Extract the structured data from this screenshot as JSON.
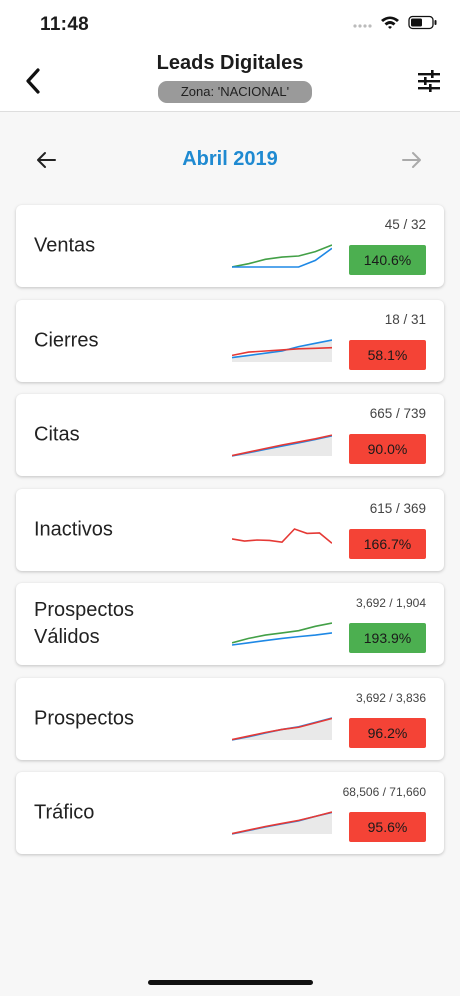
{
  "status_bar": {
    "time": "11:48"
  },
  "header": {
    "title": "Leads Digitales",
    "zone": "Zona: 'NACIONAL'"
  },
  "month_nav": {
    "label": "Abril 2019"
  },
  "colors": {
    "accent": "#1f8ad1",
    "good": "#4caf50",
    "bad": "#f44336",
    "series_actual": "#43a047",
    "series_target": "#1e88e5",
    "series_bad": "#e53935"
  },
  "metrics": [
    {
      "name": "Ventas",
      "ratio": "45 / 32",
      "percent": "140.6%",
      "status": "good",
      "spark": {
        "a": [
          0,
          0.15,
          0.35,
          0.45,
          0.5,
          0.7,
          1.0
        ],
        "b": [
          0,
          0,
          0,
          0,
          0,
          0.3,
          0.85
        ],
        "colorA": "#43a047",
        "colorB": "#1e88e5",
        "fill": false
      }
    },
    {
      "name": "Cierres",
      "ratio": "18 / 31",
      "percent": "58.1%",
      "status": "bad",
      "spark": {
        "a": [
          0.2,
          0.3,
          0.4,
          0.5,
          0.7,
          0.85,
          1.0
        ],
        "b": [
          0.3,
          0.45,
          0.5,
          0.55,
          0.6,
          0.62,
          0.65
        ],
        "colorA": "#1e88e5",
        "colorB": "#e53935",
        "fill": true
      }
    },
    {
      "name": "Citas",
      "ratio": "665 / 739",
      "percent": "90.0%",
      "status": "bad",
      "spark": {
        "a": [
          0,
          0.15,
          0.3,
          0.45,
          0.6,
          0.75,
          0.92
        ],
        "b": [
          0.02,
          0.18,
          0.34,
          0.5,
          0.64,
          0.78,
          0.95
        ],
        "colorA": "#1e88e5",
        "colorB": "#e53935",
        "fill": true
      }
    },
    {
      "name": "Inactivos",
      "ratio": "615 / 369",
      "percent": "166.7%",
      "status": "bad",
      "spark": {
        "a": [
          0.55,
          0.45,
          0.5,
          0.48,
          0.4,
          1.0,
          0.8,
          0.82,
          0.35
        ],
        "b": null,
        "colorA": "#e53935",
        "colorB": null,
        "fill": false
      }
    },
    {
      "name": "Prospectos\nVálidos",
      "ratio": "3,692 / 1,904",
      "percent": "193.9%",
      "status": "good",
      "spark": {
        "a": [
          0.1,
          0.3,
          0.45,
          0.55,
          0.65,
          0.85,
          1.0
        ],
        "b": [
          0,
          0.1,
          0.2,
          0.3,
          0.38,
          0.45,
          0.55
        ],
        "colorA": "#43a047",
        "colorB": "#1e88e5",
        "fill": false
      }
    },
    {
      "name": "Prospectos",
      "ratio": "3,692 / 3,836",
      "percent": "96.2%",
      "status": "bad",
      "spark": {
        "a": [
          0,
          0.15,
          0.32,
          0.48,
          0.6,
          0.8,
          1.0
        ],
        "b": [
          0.02,
          0.18,
          0.34,
          0.48,
          0.58,
          0.78,
          0.98
        ],
        "colorA": "#1e88e5",
        "colorB": "#e53935",
        "fill": true
      }
    },
    {
      "name": "Tráfico",
      "ratio": "68,506 / 71,660",
      "percent": "95.6%",
      "status": "bad",
      "spark": {
        "a": [
          0,
          0.16,
          0.32,
          0.46,
          0.6,
          0.8,
          0.98
        ],
        "b": [
          0.02,
          0.18,
          0.34,
          0.48,
          0.62,
          0.8,
          1.0
        ],
        "colorA": "#1e88e5",
        "colorB": "#e53935",
        "fill": true
      }
    }
  ]
}
